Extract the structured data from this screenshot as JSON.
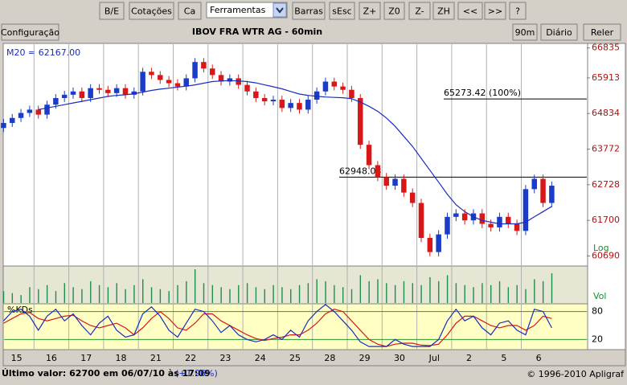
{
  "toolbar": {
    "buttons": [
      "B/E",
      "Cotações",
      "Ca",
      "Barras",
      "sEsc",
      "Z+",
      "Z0",
      "Z-",
      "ZH",
      "<<",
      ">>",
      "?"
    ],
    "select": "Ferramentas"
  },
  "header": {
    "config": "Configuração",
    "buttons": [
      "90m",
      "Diário",
      "Reler"
    ]
  },
  "status": {
    "text": "Último valor: 62700 em 06/07/10 às 17:09",
    "change": "(+1.96%)",
    "copyright": "© 1996-2010 Apligraf"
  },
  "chart_data": {
    "type": "candlestick",
    "title": "IBOV FRA WTR AG - 60min",
    "ma_label": "M20 = 62167.00",
    "scale_label": "Log",
    "days": [
      "15",
      "16",
      "17",
      "18",
      "21",
      "22",
      "23",
      "24",
      "25",
      "28",
      "29",
      "30",
      "Jul",
      "2",
      "5",
      "6"
    ],
    "open": [
      64400,
      64550,
      64700,
      64850,
      64950,
      64800,
      65100,
      65300,
      65400,
      65500,
      65300,
      65600,
      65550,
      65450,
      65600,
      65400,
      65500,
      66100,
      66000,
      65850,
      65750,
      65650,
      65900,
      66400,
      66200,
      66000,
      65800,
      65900,
      65700,
      65500,
      65300,
      65200,
      65250,
      65000,
      65150,
      64950,
      65250,
      65500,
      65800,
      65650,
      65550,
      65300,
      63900,
      63300,
      62950,
      62700,
      62900,
      62500,
      62200,
      61200,
      60800,
      61300,
      61800,
      61900,
      61700,
      61900,
      61600,
      61500,
      61800,
      61600,
      61400,
      62600,
      62900,
      62200
    ],
    "high": [
      64670,
      64820,
      64970,
      65070,
      65070,
      65220,
      65420,
      65520,
      65620,
      65620,
      65720,
      65720,
      65670,
      65720,
      65720,
      65620,
      66220,
      66220,
      66120,
      65970,
      65870,
      66020,
      66520,
      66520,
      66320,
      66120,
      66020,
      66020,
      65820,
      65620,
      65420,
      65370,
      65370,
      65270,
      65270,
      65370,
      65620,
      65920,
      65920,
      65770,
      65670,
      65420,
      64020,
      63420,
      63070,
      63020,
      63020,
      62620,
      62320,
      61320,
      61420,
      61920,
      62020,
      62020,
      62020,
      62020,
      61720,
      61920,
      61920,
      61720,
      62720,
      63020,
      63020,
      62820
    ],
    "low": [
      64280,
      64430,
      64580,
      64730,
      64680,
      64680,
      64980,
      65180,
      65280,
      65180,
      65180,
      65430,
      65330,
      65330,
      65280,
      65280,
      65380,
      65880,
      65730,
      65630,
      65530,
      65530,
      65780,
      66080,
      65880,
      65680,
      65680,
      65580,
      65380,
      65180,
      65080,
      65080,
      64880,
      64880,
      64830,
      64830,
      65130,
      65380,
      65530,
      65430,
      65180,
      63780,
      63180,
      62830,
      62580,
      62580,
      62380,
      62080,
      61080,
      60680,
      60680,
      61180,
      61680,
      61580,
      61580,
      61480,
      61380,
      61380,
      61480,
      61280,
      61280,
      62480,
      62080,
      62080
    ],
    "close": [
      64550,
      64700,
      64850,
      64950,
      64800,
      65100,
      65300,
      65400,
      65500,
      65300,
      65600,
      65550,
      65450,
      65600,
      65400,
      65500,
      66100,
      66000,
      65850,
      65750,
      65650,
      65900,
      66400,
      66200,
      66000,
      65800,
      65900,
      65700,
      65500,
      65300,
      65200,
      65250,
      65000,
      65150,
      64950,
      65250,
      65500,
      65800,
      65650,
      65550,
      65300,
      63900,
      63300,
      62950,
      62700,
      62900,
      62500,
      62200,
      61200,
      60800,
      61300,
      61800,
      61900,
      61700,
      61900,
      61600,
      61500,
      61800,
      61600,
      61400,
      62600,
      62900,
      62200,
      62700
    ],
    "up_color": "#1a3cc8",
    "down_color": "#d81818",
    "ma20": [
      null,
      null,
      null,
      null,
      64950,
      65000,
      65050,
      65100,
      65150,
      65200,
      65250,
      65300,
      65350,
      65380,
      65400,
      65430,
      65480,
      65530,
      65570,
      65600,
      65630,
      65660,
      65700,
      65750,
      65800,
      65820,
      65830,
      65820,
      65800,
      65760,
      65700,
      65640,
      65580,
      65500,
      65420,
      65380,
      65350,
      65330,
      65320,
      65310,
      65280,
      65180,
      65050,
      64900,
      64700,
      64450,
      64150,
      63850,
      63500,
      63150,
      62800,
      62450,
      62150,
      61950,
      61800,
      61700,
      61650,
      61600,
      61600,
      61600,
      61650,
      61800,
      61950,
      62100
    ],
    "ma_color": "#1a2cc0",
    "ylim": [
      60430,
      66950
    ],
    "log_scale": true,
    "yticks": [
      66835,
      65913,
      64834,
      63772,
      62728,
      61700,
      60690
    ],
    "levels": [
      62948.03,
      {
        "value": 65273.42,
        "label": "65273.42 (100%)"
      }
    ],
    "volume": {
      "label": "Vol",
      "color": "#1f8f4a",
      "values": [
        30,
        25,
        20,
        40,
        35,
        45,
        30,
        50,
        40,
        35,
        55,
        45,
        40,
        50,
        35,
        45,
        60,
        40,
        35,
        30,
        45,
        55,
        85,
        50,
        45,
        40,
        35,
        45,
        50,
        40,
        35,
        45,
        40,
        35,
        45,
        50,
        60,
        55,
        45,
        40,
        35,
        70,
        55,
        60,
        50,
        45,
        55,
        50,
        45,
        65,
        55,
        70,
        50,
        45,
        40,
        50,
        45,
        55,
        40,
        45,
        35,
        60,
        55,
        75
      ]
    },
    "stochastic": {
      "label": "%KDs",
      "k_color": "#1a2cc0",
      "d_color": "#d81818",
      "ylim": [
        0,
        100
      ],
      "yticks": [
        80,
        20
      ],
      "k": [
        60,
        80,
        85,
        70,
        40,
        70,
        85,
        60,
        75,
        50,
        30,
        55,
        70,
        40,
        25,
        30,
        75,
        90,
        70,
        40,
        25,
        55,
        85,
        80,
        60,
        35,
        50,
        30,
        20,
        15,
        20,
        30,
        20,
        40,
        25,
        60,
        80,
        95,
        80,
        60,
        40,
        15,
        5,
        5,
        5,
        20,
        10,
        5,
        5,
        5,
        20,
        60,
        85,
        60,
        70,
        45,
        30,
        55,
        60,
        40,
        30,
        85,
        80,
        45
      ],
      "d": [
        55,
        65,
        75,
        78,
        65,
        60,
        65,
        70,
        72,
        60,
        50,
        45,
        50,
        55,
        45,
        30,
        45,
        65,
        80,
        65,
        45,
        40,
        55,
        75,
        75,
        60,
        50,
        40,
        30,
        22,
        18,
        22,
        25,
        30,
        30,
        40,
        55,
        75,
        85,
        80,
        60,
        40,
        20,
        10,
        5,
        10,
        12,
        12,
        8,
        7,
        10,
        30,
        55,
        70,
        70,
        60,
        50,
        45,
        50,
        50,
        40,
        50,
        70,
        65
      ]
    }
  }
}
